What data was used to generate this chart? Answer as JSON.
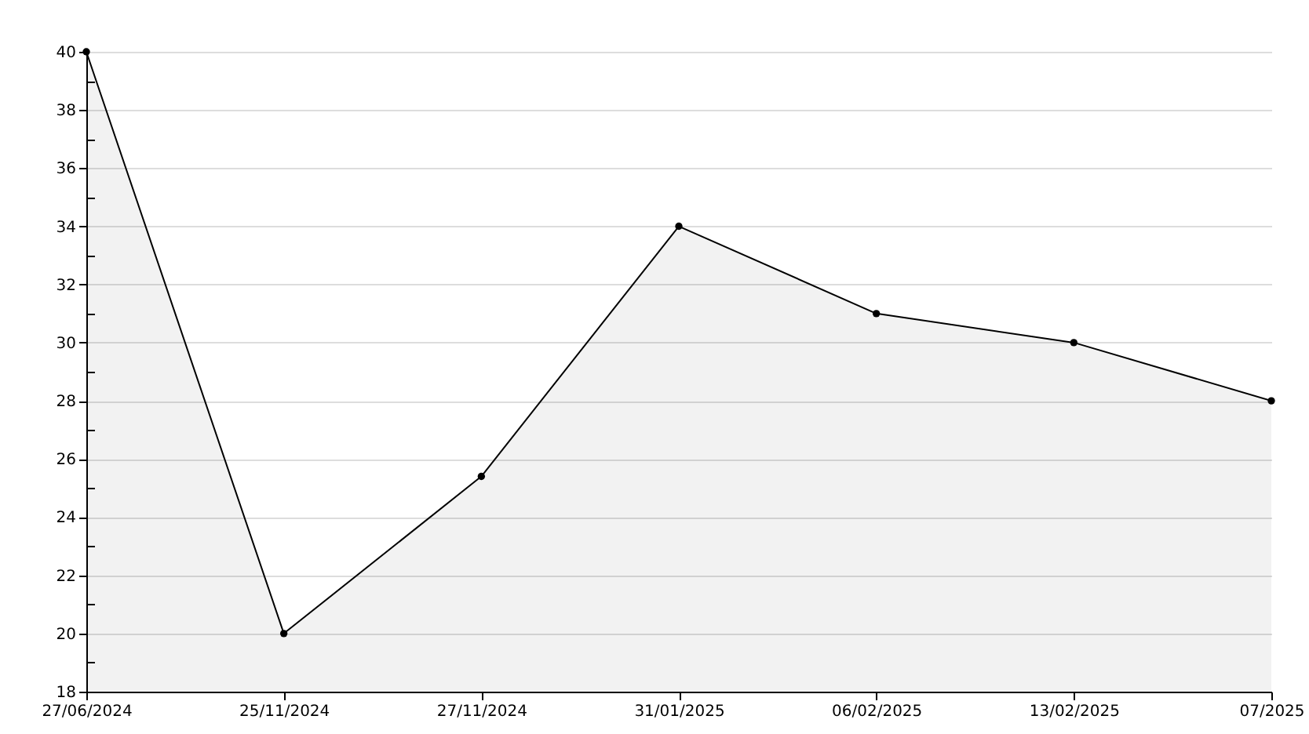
{
  "chart_data": {
    "type": "area",
    "categories": [
      "27/06/2024",
      "25/11/2024",
      "27/11/2024",
      "31/01/2025",
      "06/02/2025",
      "13/02/2025",
      "07/2025"
    ],
    "series": [
      {
        "color": "#000000",
        "values": [
          40,
          20,
          25.4,
          34,
          31,
          30,
          28
        ]
      }
    ],
    "ylim": [
      18,
      40
    ],
    "yticks": [
      18,
      {
        "value": 19,
        "label": null
      },
      20,
      {
        "value": 21,
        "label": null
      },
      22,
      {
        "value": 23,
        "label": null
      },
      24,
      {
        "value": 25,
        "label": null
      },
      26,
      {
        "value": 27,
        "label": null
      },
      28,
      {
        "value": 29,
        "label": null
      },
      30,
      {
        "value": 31,
        "label": null
      },
      32,
      {
        "value": 33,
        "label": null
      },
      34,
      {
        "value": 35,
        "label": null
      },
      36,
      {
        "value": 37,
        "label": null
      },
      38,
      {
        "value": 39,
        "label": null
      },
      40
    ],
    "grid": "y",
    "marker": "circle",
    "line_style": "solid"
  }
}
